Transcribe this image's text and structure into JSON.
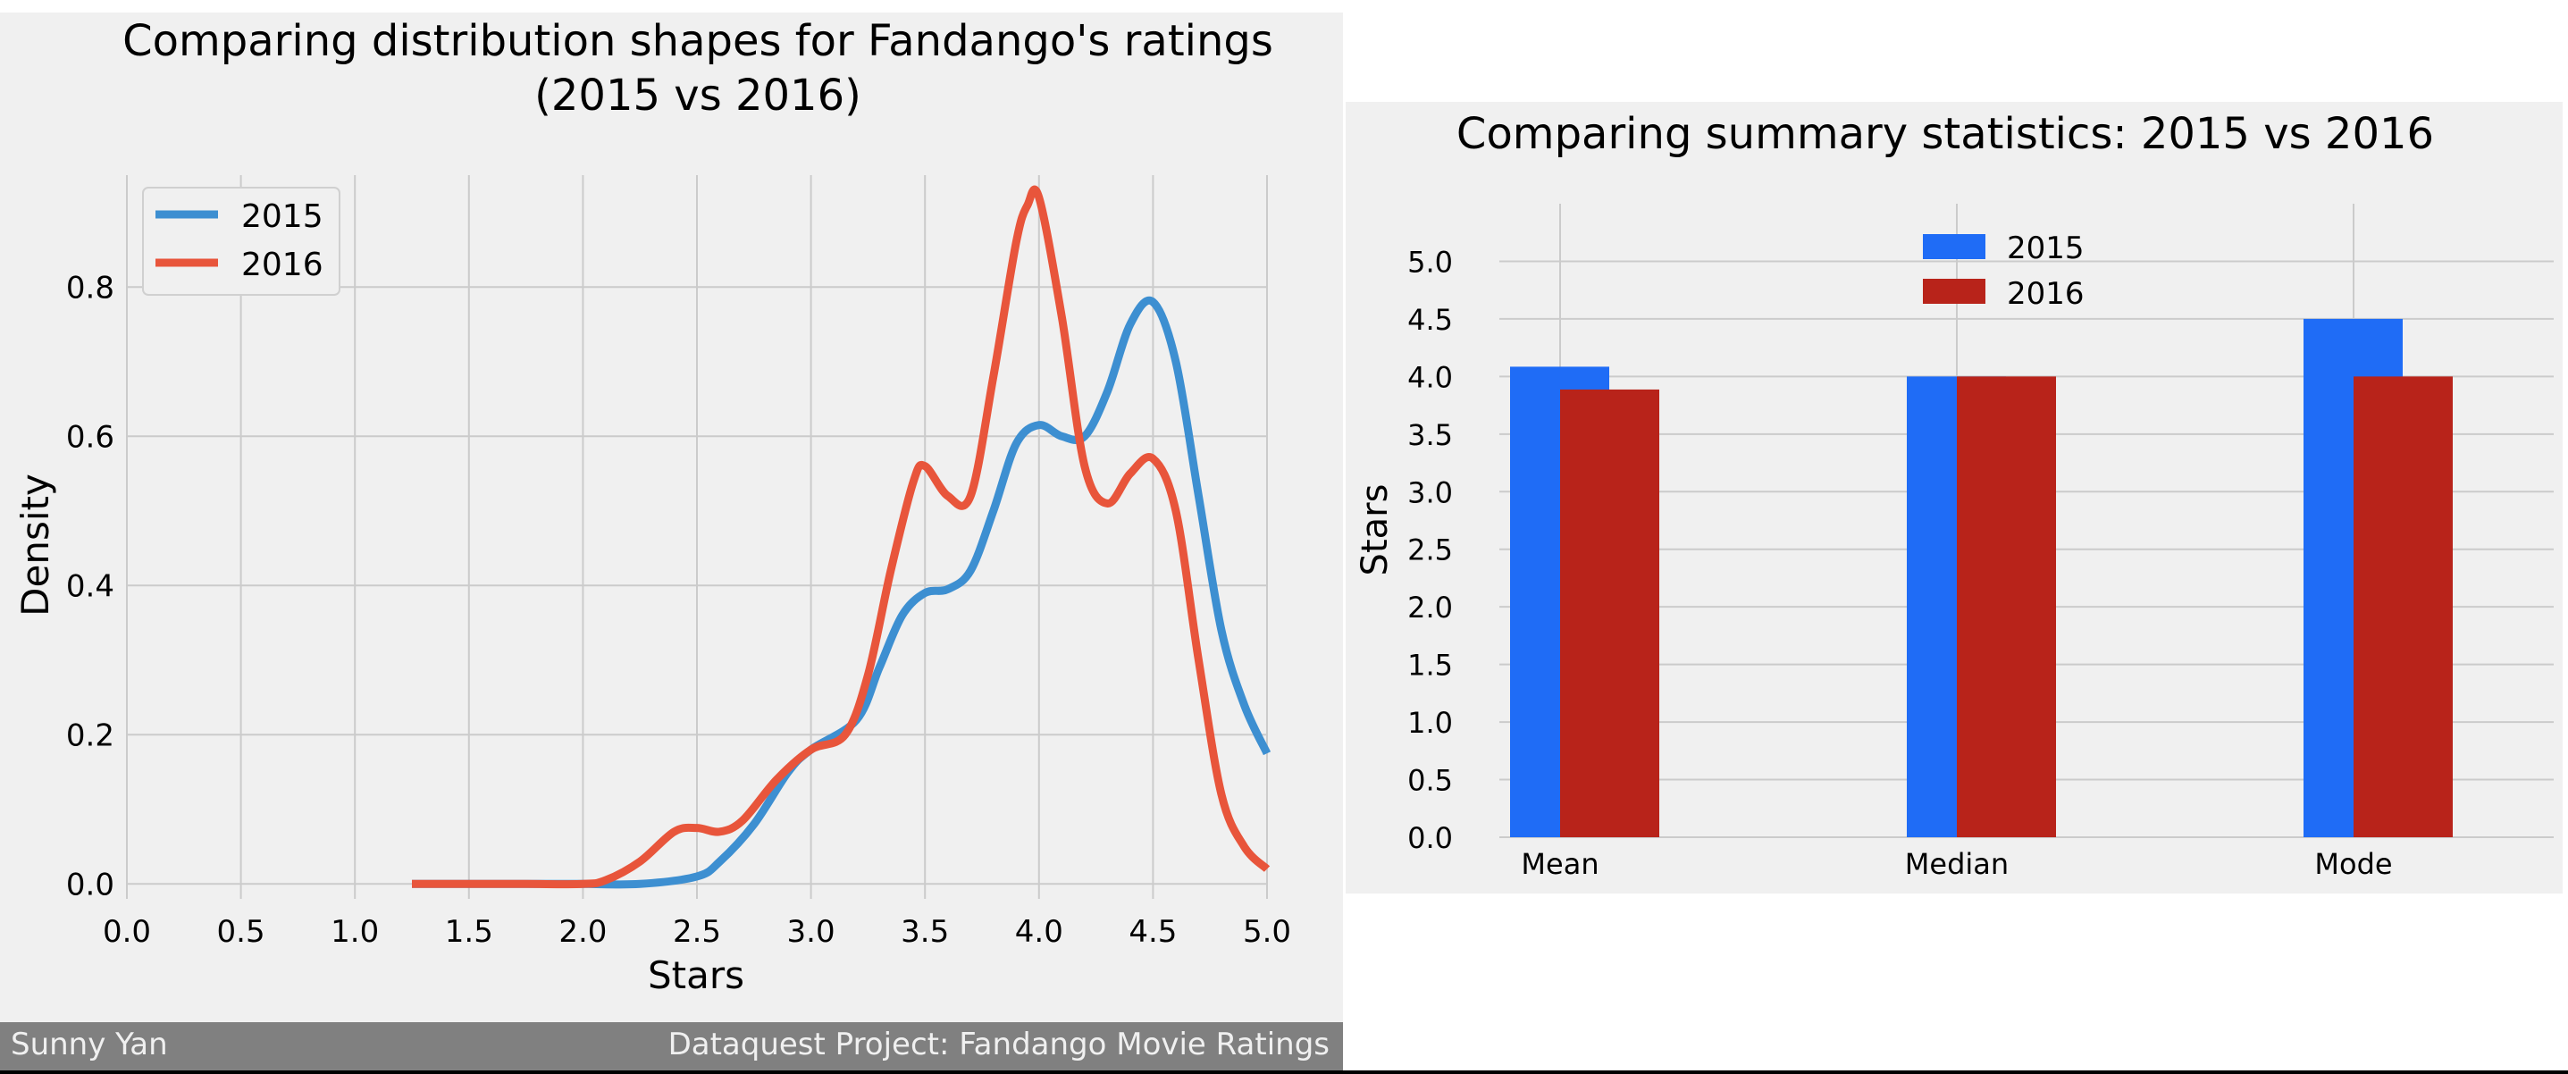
{
  "colors": {
    "panel_bg": "#f0f0f0",
    "grid": "#cbcbcb",
    "series_2015_line": "#3d8fd1",
    "series_2016_line": "#e8553b",
    "series_2015_bar": "#1f6cf6",
    "series_2016_bar": "#b8231a",
    "footer_bg": "#808080",
    "footer_text": "#f0f0f0"
  },
  "footer": {
    "left": "Sunny Yan",
    "right": "Dataquest Project: Fandango Movie Ratings"
  },
  "chart_data": [
    {
      "type": "line",
      "title": "Comparing distribution shapes for Fandango's ratings",
      "subtitle": "(2015 vs 2016)",
      "xlabel": "Stars",
      "ylabel": "Density",
      "xlim": [
        0,
        5
      ],
      "ylim": [
        -0.02,
        0.95
      ],
      "xticks": [
        "0.0",
        "0.5",
        "1.0",
        "1.5",
        "2.0",
        "2.5",
        "3.0",
        "3.5",
        "4.0",
        "4.5",
        "5.0"
      ],
      "yticks": [
        "0.0",
        "0.2",
        "0.4",
        "0.6",
        "0.8"
      ],
      "grid": true,
      "legend": "top-left",
      "series": [
        {
          "name": "2015",
          "x": [
            1.25,
            1.5,
            1.75,
            2.0,
            2.25,
            2.5,
            2.6,
            2.75,
            2.9,
            3.0,
            3.2,
            3.3,
            3.4,
            3.5,
            3.6,
            3.7,
            3.8,
            3.9,
            4.0,
            4.1,
            4.2,
            4.3,
            4.4,
            4.5,
            4.6,
            4.7,
            4.8,
            4.9,
            5.0
          ],
          "y": [
            0.0,
            0.0,
            0.0,
            0.0,
            0.0,
            0.01,
            0.03,
            0.08,
            0.15,
            0.18,
            0.22,
            0.29,
            0.36,
            0.39,
            0.395,
            0.42,
            0.5,
            0.59,
            0.615,
            0.6,
            0.6,
            0.66,
            0.75,
            0.78,
            0.7,
            0.52,
            0.34,
            0.24,
            0.175
          ]
        },
        {
          "name": "2016",
          "x": [
            1.25,
            1.5,
            1.75,
            2.0,
            2.1,
            2.25,
            2.4,
            2.5,
            2.6,
            2.7,
            2.85,
            3.0,
            3.15,
            3.25,
            3.35,
            3.45,
            3.5,
            3.6,
            3.7,
            3.8,
            3.9,
            3.95,
            4.0,
            4.1,
            4.2,
            4.3,
            4.4,
            4.5,
            4.6,
            4.7,
            4.8,
            4.9,
            5.0
          ],
          "y": [
            0.0,
            0.0,
            0.0,
            0.0,
            0.005,
            0.03,
            0.07,
            0.075,
            0.07,
            0.085,
            0.14,
            0.18,
            0.2,
            0.28,
            0.42,
            0.54,
            0.56,
            0.52,
            0.52,
            0.68,
            0.86,
            0.91,
            0.92,
            0.76,
            0.56,
            0.51,
            0.55,
            0.57,
            0.5,
            0.3,
            0.12,
            0.05,
            0.02
          ]
        }
      ]
    },
    {
      "type": "bar",
      "title": "Comparing summary statistics: 2015 vs 2016",
      "xlabel": "",
      "ylabel": "Stars",
      "categories": [
        "Mean",
        "Median",
        "Mode"
      ],
      "ylim": [
        0,
        5.5
      ],
      "yticks": [
        "0.0",
        "0.5",
        "1.0",
        "1.5",
        "2.0",
        "2.5",
        "3.0",
        "3.5",
        "4.0",
        "4.5",
        "5.0"
      ],
      "grid": true,
      "legend": "top-center",
      "series": [
        {
          "name": "2015",
          "values": [
            4.085,
            4.0,
            4.5
          ]
        },
        {
          "name": "2016",
          "values": [
            3.887,
            4.0,
            4.0
          ]
        }
      ]
    }
  ]
}
